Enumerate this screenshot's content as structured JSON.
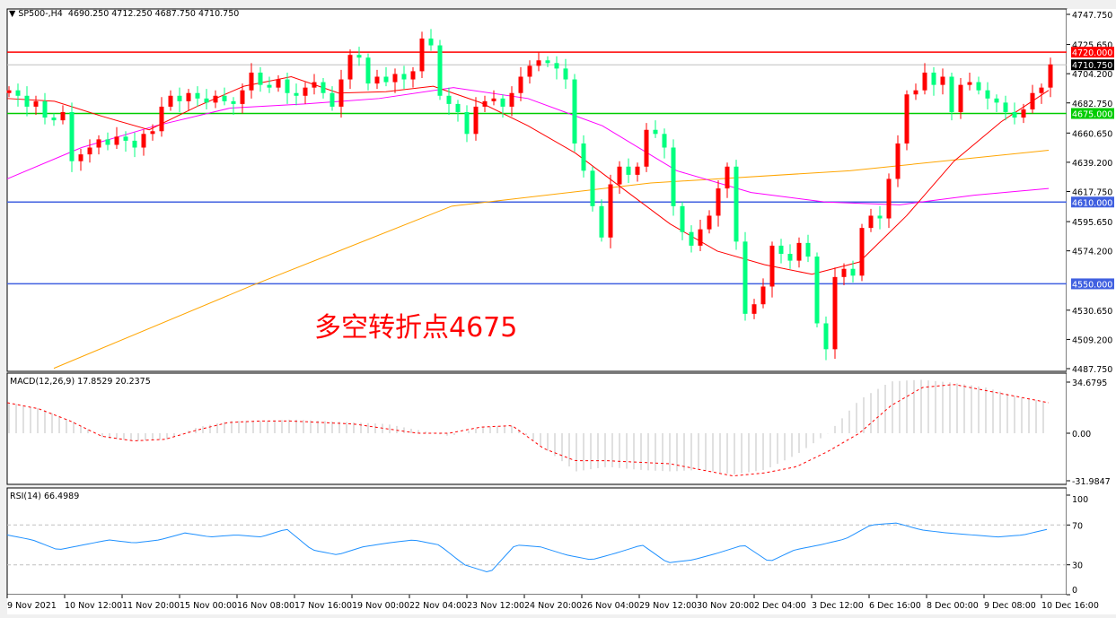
{
  "header": {
    "symbol": "SP500-,H4",
    "ohlc": "4690.250 4712.250 4687.750 4710.750"
  },
  "annotation": "多空转折点4675",
  "colors": {
    "bull": "#ff0000",
    "bear": "#00ff7f",
    "ma_fast": "#ff0000",
    "ma_mid": "#ff00ff",
    "ma_slow": "#ffa500",
    "level_red": "#ff0000",
    "level_green": "#00cc00",
    "level_blue": "#4060e0",
    "macd_hist": "#c0c0c0",
    "macd_signal": "#ff0000",
    "rsi": "#1e90ff"
  },
  "chart_data": [
    {
      "type": "candlestick",
      "title": "SP500-,H4",
      "ylim": [
        4487.75,
        4747.75
      ],
      "y_ticks": [
        "4747.750",
        "4725.650",
        "4704.200",
        "4682.750",
        "4660.650",
        "4639.200",
        "4617.750",
        "4595.650",
        "4574.200",
        "4530.650",
        "4509.200",
        "4487.750"
      ],
      "x_ticks": [
        "9 Nov 2021",
        "10 Nov 12:00",
        "11 Nov 20:00",
        "15 Nov 00:00",
        "16 Nov 08:00",
        "17 Nov 16:00",
        "19 Nov 00:00",
        "22 Nov 04:00",
        "23 Nov 12:00",
        "24 Nov 20:00",
        "26 Nov 04:00",
        "29 Nov 12:00",
        "30 Nov 20:00",
        "2 Dec 04:00",
        "3 Dec 12:00",
        "6 Dec 16:00",
        "8 Dec 00:00",
        "9 Dec 08:00",
        "10 Dec 16:00"
      ],
      "first_open": 4690,
      "closes": [
        4692,
        4688,
        4680,
        4684,
        4672,
        4670,
        4676,
        4640,
        4645,
        4650,
        4656,
        4652,
        4658,
        4655,
        4650,
        4660,
        4662,
        4680,
        4688,
        4684,
        4690,
        4686,
        4683,
        4688,
        4684,
        4682,
        4692,
        4705,
        4696,
        4694,
        4700,
        4690,
        4688,
        4694,
        4698,
        4690,
        4680,
        4700,
        4718,
        4716,
        4697,
        4702,
        4698,
        4704,
        4700,
        4706,
        4730,
        4725,
        4688,
        4682,
        4676,
        4660,
        4680,
        4684,
        4686,
        4680,
        4690,
        4702,
        4710,
        4714,
        4712,
        4708,
        4700,
        4653,
        4633,
        4607,
        4584,
        4623,
        4636,
        4630,
        4636,
        4663,
        4660,
        4650,
        4607,
        4588,
        4578,
        4590,
        4600,
        4620,
        4636,
        4581,
        4528,
        4535,
        4548,
        4578,
        4572,
        4567,
        4580,
        4570,
        4521,
        4502,
        4555,
        4561,
        4556,
        4591,
        4600,
        4598,
        4627,
        4653,
        4689,
        4692,
        4705,
        4696,
        4702,
        4676,
        4696,
        4698,
        4692,
        4686,
        4683,
        4676,
        4672,
        4678,
        4690,
        4694,
        4711
      ],
      "ma_fast": [
        4686,
        4684,
        4673,
        4663,
        4680,
        4695,
        4702,
        4690,
        4691,
        4695,
        4683,
        4666,
        4646,
        4620,
        4594,
        4574,
        4564,
        4557,
        4566,
        4600,
        4640,
        4669,
        4692
      ],
      "ma_mid": [
        4627,
        4650,
        4666,
        4679,
        4682,
        4686,
        4694,
        4686,
        4666,
        4633,
        4617,
        4610,
        4608,
        4615,
        4620
      ],
      "ma_slow": [
        4488,
        4549,
        4607,
        4624,
        4633,
        4648
      ],
      "levels": [
        {
          "value": 4720.0,
          "label": "4720.000",
          "color": "red"
        },
        {
          "value": 4710.75,
          "label": "4710.750",
          "color": "current"
        },
        {
          "value": 4675.0,
          "label": "4675.000",
          "color": "green"
        },
        {
          "value": 4610.0,
          "label": "4610.000",
          "color": "blue"
        },
        {
          "value": 4550.0,
          "label": "4550.000",
          "color": "blue"
        }
      ]
    },
    {
      "type": "bar+line",
      "title": "MACD(12,26,9) 17.8529 20.2375",
      "ylim": [
        -31.9847,
        34.6795
      ],
      "y_ticks": [
        "34.6795",
        "0.00",
        "-31.9847"
      ],
      "histogram": [
        20,
        16,
        8,
        -3,
        -5,
        -4,
        4,
        8,
        8,
        9,
        8,
        7,
        6,
        2,
        -2,
        4,
        5,
        -10,
        -25,
        -22,
        -24,
        -25,
        -24,
        -27,
        -24,
        -14,
        0,
        22,
        34,
        35,
        33,
        30,
        24,
        20
      ],
      "signal": [
        20,
        16,
        8,
        -2,
        -5,
        -4,
        2,
        7,
        8,
        8,
        7,
        6,
        3,
        0,
        0,
        4,
        5,
        -10,
        -18,
        -18,
        -19,
        -20,
        -24,
        -28,
        -26,
        -22,
        -12,
        0,
        18,
        30,
        32,
        28,
        24,
        20
      ]
    },
    {
      "type": "line",
      "title": "RSI(14) 66.4989",
      "ylim": [
        0,
        100
      ],
      "y_ticks": [
        "100",
        "70",
        "30",
        "0"
      ],
      "levels": [
        70,
        30
      ],
      "values": [
        60,
        55,
        45,
        50,
        55,
        52,
        55,
        62,
        58,
        60,
        58,
        66,
        45,
        40,
        48,
        52,
        55,
        50,
        30,
        22,
        50,
        48,
        40,
        35,
        42,
        50,
        32,
        35,
        42,
        50,
        33,
        45,
        50,
        56,
        70,
        72,
        65,
        62,
        60,
        58,
        60,
        66
      ]
    }
  ]
}
